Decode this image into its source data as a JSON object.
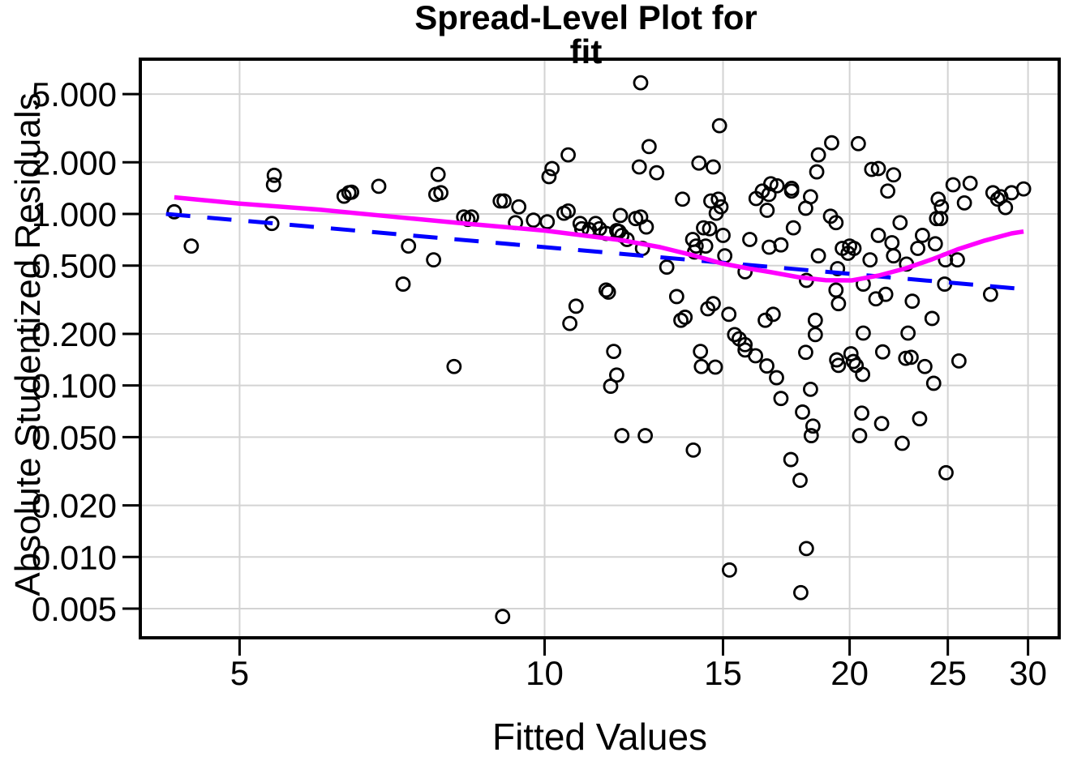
{
  "title": {
    "line1": "Spread-Level Plot for",
    "line2": "fit"
  },
  "colors": {
    "background": "#FFFFFF",
    "frame": "#000000",
    "grid": "#D3D3D3",
    "tick": "#000000",
    "point_stroke": "#000000",
    "lowess_line": "#FF00FF",
    "fit_line": "#0000FF",
    "text": "#000000"
  },
  "chart_data": {
    "type": "scatter",
    "title": "Spread-Level Plot for fit",
    "xlabel": "Fitted Values",
    "ylabel": "Absolute Studentized Residuals",
    "x_scale": "log",
    "y_scale": "log",
    "xlim": [
      3.99,
      32.2
    ],
    "ylim": [
      0.00338,
      7.99
    ],
    "grid": true,
    "x_ticks": [
      5,
      10,
      15,
      20,
      25,
      30
    ],
    "x_tick_labels": [
      "5",
      "10",
      "15",
      "20",
      "25",
      "30"
    ],
    "y_ticks": [
      0.005,
      0.01,
      0.02,
      0.05,
      0.1,
      0.2,
      0.5,
      1.0,
      2.0,
      5.0
    ],
    "y_tick_labels": [
      "0.005",
      "0.010",
      "0.020",
      "0.050",
      "0.100",
      "0.200",
      "0.500",
      "1.000",
      "2.000",
      "5.000"
    ],
    "points": [
      [
        4.31,
        1.03
      ],
      [
        4.48,
        0.65
      ],
      [
        5.41,
        1.68
      ],
      [
        5.4,
        1.48
      ],
      [
        5.38,
        0.88
      ],
      [
        6.34,
        1.27
      ],
      [
        6.41,
        1.33
      ],
      [
        6.45,
        1.34
      ],
      [
        6.86,
        1.45
      ],
      [
        7.34,
        0.65
      ],
      [
        7.25,
        0.39
      ],
      [
        7.77,
        0.54
      ],
      [
        7.85,
        1.7
      ],
      [
        7.81,
        1.3
      ],
      [
        7.9,
        1.33
      ],
      [
        8.32,
        0.96
      ],
      [
        8.14,
        0.129
      ],
      [
        8.47,
        0.96
      ],
      [
        8.4,
        0.93
      ],
      [
        9.04,
        1.19
      ],
      [
        9.12,
        1.19
      ],
      [
        9.43,
        1.1
      ],
      [
        9.75,
        0.92
      ],
      [
        10.06,
        0.9
      ],
      [
        9.36,
        0.89
      ],
      [
        10.45,
        1.01
      ],
      [
        10.55,
        1.04
      ],
      [
        10.17,
        1.84
      ],
      [
        10.1,
        1.65
      ],
      [
        10.55,
        2.21
      ],
      [
        10.84,
        0.88
      ],
      [
        10.88,
        0.82
      ],
      [
        11.07,
        0.81
      ],
      [
        11.23,
        0.88
      ],
      [
        11.33,
        0.82
      ],
      [
        11.5,
        0.77
      ],
      [
        11.78,
        0.8
      ],
      [
        11.84,
        0.79
      ],
      [
        11.92,
        0.75
      ],
      [
        11.88,
        0.98
      ],
      [
        12.06,
        0.71
      ],
      [
        12.3,
        0.94
      ],
      [
        12.44,
        0.96
      ],
      [
        12.6,
        0.84
      ],
      [
        12.49,
        0.63
      ],
      [
        12.44,
        5.82
      ],
      [
        12.68,
        2.47
      ],
      [
        12.4,
        1.88
      ],
      [
        12.9,
        1.74
      ],
      [
        13.2,
        0.49
      ],
      [
        13.68,
        1.22
      ],
      [
        14.0,
        0.71
      ],
      [
        14.11,
        0.65
      ],
      [
        14.06,
        0.6
      ],
      [
        14.35,
        0.83
      ],
      [
        14.55,
        0.82
      ],
      [
        14.42,
        0.65
      ],
      [
        14.59,
        1.19
      ],
      [
        14.84,
        1.22
      ],
      [
        14.93,
        1.1
      ],
      [
        14.77,
        1.01
      ],
      [
        14.2,
        1.98
      ],
      [
        14.67,
        1.88
      ],
      [
        14.88,
        3.27
      ],
      [
        15.0,
        0.75
      ],
      [
        15.06,
        0.57
      ],
      [
        11.5,
        0.36
      ],
      [
        11.56,
        0.35
      ],
      [
        10.74,
        0.29
      ],
      [
        10.59,
        0.23
      ],
      [
        13.5,
        0.33
      ],
      [
        13.63,
        0.24
      ],
      [
        13.76,
        0.25
      ],
      [
        14.49,
        0.28
      ],
      [
        14.67,
        0.3
      ],
      [
        15.2,
        0.26
      ],
      [
        15.4,
        0.198
      ],
      [
        15.56,
        0.187
      ],
      [
        15.77,
        0.173
      ],
      [
        16.51,
        0.24
      ],
      [
        16.81,
        0.26
      ],
      [
        11.7,
        0.158
      ],
      [
        14.25,
        0.158
      ],
      [
        14.28,
        0.129
      ],
      [
        14.74,
        0.128
      ],
      [
        11.78,
        0.115
      ],
      [
        11.62,
        0.099
      ],
      [
        15.77,
        0.161
      ],
      [
        16.15,
        0.149
      ],
      [
        16.57,
        0.13
      ],
      [
        16.94,
        0.111
      ],
      [
        17.11,
        0.084
      ],
      [
        11.92,
        0.051
      ],
      [
        12.57,
        0.051
      ],
      [
        14.02,
        0.042
      ],
      [
        15.22,
        0.0084
      ],
      [
        9.09,
        0.0045
      ],
      [
        15.94,
        0.71
      ],
      [
        15.77,
        0.46
      ],
      [
        16.72,
        1.5
      ],
      [
        16.96,
        1.46
      ],
      [
        17.53,
        1.41
      ],
      [
        16.4,
        1.36
      ],
      [
        16.17,
        1.23
      ],
      [
        16.65,
        1.3
      ],
      [
        18.3,
        1.26
      ],
      [
        18.1,
        1.08
      ],
      [
        16.58,
        1.05
      ],
      [
        19.15,
        0.97
      ],
      [
        16.66,
        0.64
      ],
      [
        17.11,
        0.66
      ],
      [
        19.2,
        2.6
      ],
      [
        20.4,
        2.57
      ],
      [
        18.63,
        2.21
      ],
      [
        18.56,
        1.76
      ],
      [
        17.53,
        1.36
      ],
      [
        21.03,
        1.82
      ],
      [
        21.35,
        1.84
      ],
      [
        22.1,
        1.69
      ],
      [
        21.81,
        1.36
      ],
      [
        24.46,
        1.22
      ],
      [
        24.64,
        1.1
      ],
      [
        24.37,
        0.94
      ],
      [
        24.6,
        0.94
      ],
      [
        25.3,
        1.48
      ],
      [
        26.3,
        1.51
      ],
      [
        25.96,
        1.16
      ],
      [
        27.7,
        1.33
      ],
      [
        28.2,
        1.26
      ],
      [
        28.0,
        1.22
      ],
      [
        28.5,
        1.09
      ],
      [
        28.9,
        1.33
      ],
      [
        29.7,
        1.4
      ],
      [
        19.39,
        0.89
      ],
      [
        17.6,
        0.83
      ],
      [
        18.63,
        0.57
      ],
      [
        18.13,
        0.41
      ],
      [
        19.67,
        0.63
      ],
      [
        20.0,
        0.65
      ],
      [
        20.2,
        0.63
      ],
      [
        19.93,
        0.59
      ],
      [
        19.46,
        0.48
      ],
      [
        20.95,
        0.54
      ],
      [
        21.35,
        0.75
      ],
      [
        22.43,
        0.89
      ],
      [
        22.02,
        0.68
      ],
      [
        22.1,
        0.57
      ],
      [
        22.76,
        0.51
      ],
      [
        23.35,
        0.63
      ],
      [
        23.6,
        0.75
      ],
      [
        24.3,
        0.67
      ],
      [
        24.87,
        0.54
      ],
      [
        25.55,
        0.54
      ],
      [
        24.82,
        0.39
      ],
      [
        27.55,
        0.34
      ],
      [
        20.63,
        0.39
      ],
      [
        19.39,
        0.36
      ],
      [
        19.5,
        0.3
      ],
      [
        21.23,
        0.32
      ],
      [
        21.71,
        0.34
      ],
      [
        23.06,
        0.31
      ],
      [
        18.5,
        0.24
      ],
      [
        18.5,
        0.198
      ],
      [
        20.63,
        0.202
      ],
      [
        22.84,
        0.202
      ],
      [
        24.12,
        0.246
      ],
      [
        18.1,
        0.156
      ],
      [
        19.42,
        0.141
      ],
      [
        19.5,
        0.131
      ],
      [
        20.06,
        0.153
      ],
      [
        20.17,
        0.138
      ],
      [
        20.3,
        0.131
      ],
      [
        20.6,
        0.116
      ],
      [
        21.56,
        0.157
      ],
      [
        22.72,
        0.144
      ],
      [
        23.0,
        0.146
      ],
      [
        23.73,
        0.129
      ],
      [
        24.21,
        0.103
      ],
      [
        25.64,
        0.139
      ],
      [
        18.3,
        0.095
      ],
      [
        17.97,
        0.07
      ],
      [
        18.4,
        0.058
      ],
      [
        18.33,
        0.051
      ],
      [
        20.56,
        0.069
      ],
      [
        20.46,
        0.051
      ],
      [
        21.51,
        0.06
      ],
      [
        23.45,
        0.064
      ],
      [
        22.54,
        0.046
      ],
      [
        24.9,
        0.031
      ],
      [
        17.5,
        0.037
      ],
      [
        17.87,
        0.028
      ],
      [
        18.13,
        0.0112
      ],
      [
        17.9,
        0.0062
      ]
    ],
    "series": [
      {
        "name": "lowess-smooth",
        "type": "line",
        "style": "solid",
        "color": "#FF00FF",
        "width": 5.5,
        "points": [
          [
            4.31,
            1.25
          ],
          [
            5.0,
            1.15
          ],
          [
            6.0,
            1.06
          ],
          [
            7.0,
            0.97
          ],
          [
            8.33,
            0.88
          ],
          [
            10.0,
            0.8
          ],
          [
            11.97,
            0.7
          ],
          [
            13.0,
            0.64
          ],
          [
            14.0,
            0.575
          ],
          [
            14.95,
            0.515
          ],
          [
            16.0,
            0.478
          ],
          [
            16.75,
            0.457
          ],
          [
            17.8,
            0.428
          ],
          [
            18.93,
            0.411
          ],
          [
            20.1,
            0.41
          ],
          [
            21.35,
            0.437
          ],
          [
            22.72,
            0.482
          ],
          [
            24.12,
            0.544
          ],
          [
            25.55,
            0.621
          ],
          [
            27.2,
            0.7
          ],
          [
            28.9,
            0.77
          ],
          [
            29.7,
            0.79
          ]
        ]
      },
      {
        "name": "power-fit",
        "type": "line",
        "style": "dashed",
        "color": "#0000FF",
        "width": 5,
        "points": [
          [
            4.23,
            1.0
          ],
          [
            29.2,
            0.368
          ]
        ]
      }
    ],
    "legend": null
  }
}
